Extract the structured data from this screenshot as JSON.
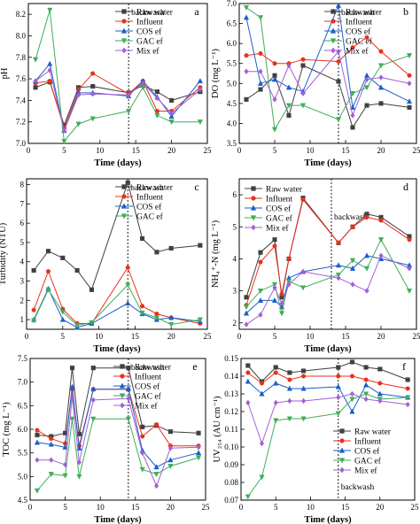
{
  "styles": {
    "Raw water": {
      "color": "#404040",
      "marker": "square"
    },
    "Influent": {
      "color": "#e8311c",
      "marker": "circle"
    },
    "COS ef": {
      "color": "#1a5fc8",
      "marker": "triangle-up"
    },
    "GAC ef": {
      "color": "#3fae5a",
      "marker": "triangle-down"
    },
    "Mix ef": {
      "color": "#a35fd6",
      "marker": "diamond"
    }
  },
  "chart_data": [
    {
      "panel": "a",
      "type": "line",
      "xlabel": "Time (days)",
      "ylabel": "pH",
      "xlim": [
        0,
        25
      ],
      "ylim": [
        7.0,
        8.3
      ],
      "xticks": [
        0,
        5,
        10,
        15,
        20,
        25
      ],
      "yticks": [
        7.0,
        7.2,
        7.4,
        7.6,
        7.8,
        8.0,
        8.2
      ],
      "tickdec": 1,
      "annotation": {
        "text": "backwash",
        "x": 14
      },
      "legend_pos": "top-right",
      "series": [
        {
          "name": "Raw water",
          "x": [
            1,
            3,
            5,
            7,
            9,
            14,
            16,
            18,
            20,
            24
          ],
          "y": [
            7.52,
            7.57,
            7.17,
            7.52,
            7.53,
            7.47,
            7.54,
            7.48,
            7.4,
            7.48
          ]
        },
        {
          "name": "Influent",
          "x": [
            1,
            3,
            5,
            7,
            9,
            14,
            16,
            18,
            20,
            24
          ],
          "y": [
            7.56,
            7.58,
            7.14,
            7.5,
            7.65,
            7.46,
            7.58,
            7.3,
            7.3,
            7.52
          ]
        },
        {
          "name": "COS ef",
          "x": [
            1,
            3,
            5,
            7,
            9,
            14,
            16,
            18,
            20,
            24
          ],
          "y": [
            7.58,
            7.74,
            7.12,
            7.47,
            7.47,
            7.44,
            7.58,
            7.43,
            7.25,
            7.58
          ]
        },
        {
          "name": "GAC ef",
          "x": [
            1,
            3,
            5,
            7,
            9,
            14,
            16,
            18,
            20,
            24
          ],
          "y": [
            7.78,
            8.24,
            7.02,
            7.18,
            7.23,
            7.3,
            7.52,
            7.26,
            7.2,
            7.2
          ]
        },
        {
          "name": "Mix ef",
          "x": [
            1,
            3,
            5,
            7,
            9,
            14,
            16,
            18,
            20,
            24
          ],
          "y": [
            7.58,
            7.68,
            7.12,
            7.45,
            7.46,
            7.45,
            7.56,
            7.42,
            7.28,
            7.5
          ]
        }
      ]
    },
    {
      "panel": "b",
      "type": "line",
      "xlabel": "Time (days)",
      "ylabel": "DO (mg L⁻¹)",
      "xlim": [
        0,
        25
      ],
      "ylim": [
        3.5,
        7.0
      ],
      "xticks": [
        0,
        5,
        10,
        15,
        20,
        25
      ],
      "yticks": [
        3.5,
        4.0,
        4.5,
        5.0,
        5.5,
        6.0,
        6.5,
        7.0
      ],
      "tickdec": 1,
      "annotation": {
        "text": "backwash",
        "x": 14
      },
      "legend_pos": "top-right",
      "series": [
        {
          "name": "Raw water",
          "x": [
            1,
            3,
            5,
            7,
            9,
            14,
            16,
            18,
            20,
            24
          ],
          "y": [
            4.6,
            4.85,
            5.2,
            4.2,
            5.45,
            5.05,
            3.9,
            4.45,
            4.5,
            4.4
          ]
        },
        {
          "name": "Influent",
          "x": [
            1,
            3,
            5,
            7,
            9,
            14,
            16,
            18,
            20,
            24
          ],
          "y": [
            5.7,
            5.75,
            5.5,
            5.5,
            5.6,
            5.55,
            5.9,
            6.15,
            5.8,
            5.2
          ]
        },
        {
          "name": "COS ef",
          "x": [
            1,
            3,
            5,
            7,
            9,
            14,
            16,
            18,
            20,
            24
          ],
          "y": [
            6.65,
            5.0,
            5.1,
            4.9,
            4.8,
            6.95,
            4.4,
            5.2,
            4.9,
            4.55
          ]
        },
        {
          "name": "GAC ef",
          "x": [
            1,
            3,
            5,
            7,
            9,
            14,
            16,
            18,
            20,
            24
          ],
          "y": [
            6.9,
            6.65,
            3.85,
            4.45,
            4.45,
            4.1,
            4.75,
            4.9,
            5.45,
            5.7
          ]
        },
        {
          "name": "Mix ef",
          "x": [
            1,
            3,
            5,
            7,
            9,
            14,
            16,
            18,
            20,
            24
          ],
          "y": [
            5.3,
            5.3,
            4.6,
            5.45,
            4.75,
            5.8,
            4.2,
            5.1,
            5.15,
            5.0
          ]
        }
      ]
    },
    {
      "panel": "c",
      "type": "line",
      "xlabel": "Time (days)",
      "ylabel": "Turbidity (NTU)",
      "xlim": [
        0,
        25
      ],
      "ylim": [
        0.5,
        8.3
      ],
      "xticks": [
        0,
        5,
        10,
        15,
        20,
        25
      ],
      "yticks": [
        1,
        2,
        3,
        4,
        5,
        6,
        7,
        8
      ],
      "tickdec": 0,
      "annotation": {
        "text": "backwash",
        "x": 14
      },
      "legend_pos": "top-right",
      "series": [
        {
          "name": "Raw water",
          "x": [
            1,
            3,
            5,
            7,
            9,
            14,
            16,
            18,
            20,
            24
          ],
          "y": [
            3.55,
            4.55,
            4.2,
            3.55,
            2.55,
            8.1,
            5.2,
            4.5,
            4.7,
            4.85
          ]
        },
        {
          "name": "Influent",
          "x": [
            1,
            3,
            5,
            7,
            9,
            14,
            16,
            18,
            20,
            24
          ],
          "y": [
            1.5,
            3.5,
            1.55,
            0.8,
            0.8,
            3.7,
            1.7,
            1.3,
            1.1,
            0.8
          ]
        },
        {
          "name": "COS ef",
          "x": [
            1,
            3,
            5,
            7,
            9,
            14,
            16,
            18,
            20,
            24
          ],
          "y": [
            1.0,
            2.6,
            1.0,
            0.6,
            0.8,
            1.85,
            1.3,
            1.0,
            1.1,
            0.9
          ]
        },
        {
          "name": "GAC ef",
          "x": [
            1,
            3,
            5,
            7,
            9,
            14,
            16,
            18,
            20,
            24
          ],
          "y": [
            0.95,
            2.55,
            1.4,
            0.7,
            0.85,
            2.8,
            1.35,
            1.1,
            0.75,
            1.0
          ]
        }
      ]
    },
    {
      "panel": "d",
      "type": "line",
      "xlabel": "Time (days)",
      "ylabel": "NH₄⁺-N (mg L⁻¹)",
      "xlim": [
        0,
        25
      ],
      "ylim": [
        1.8,
        6.5
      ],
      "xticks": [
        0,
        5,
        10,
        15,
        20,
        25
      ],
      "yticks": [
        2,
        3,
        4,
        5,
        6
      ],
      "tickdec": 0,
      "annotation": {
        "text": "backwash",
        "x": 13
      },
      "legend_pos": "top-left",
      "series": [
        {
          "name": "Raw water",
          "x": [
            1,
            3,
            5,
            6,
            7,
            9,
            14,
            16,
            18,
            20,
            24
          ],
          "y": [
            2.8,
            4.2,
            4.6,
            2.8,
            4.0,
            5.9,
            4.5,
            5.0,
            5.4,
            5.3,
            4.7
          ]
        },
        {
          "name": "Influent",
          "x": [
            1,
            3,
            5,
            6,
            7,
            9,
            14,
            16,
            18,
            20,
            24
          ],
          "y": [
            2.55,
            3.9,
            4.4,
            2.9,
            4.0,
            5.85,
            4.5,
            5.0,
            5.3,
            5.2,
            4.6
          ]
        },
        {
          "name": "COS ef",
          "x": [
            1,
            3,
            5,
            6,
            7,
            9,
            14,
            16,
            18,
            20,
            24
          ],
          "y": [
            2.3,
            2.7,
            2.7,
            2.5,
            3.4,
            3.6,
            3.8,
            3.7,
            4.1,
            4.0,
            3.8
          ]
        },
        {
          "name": "GAC ef",
          "x": [
            1,
            3,
            5,
            6,
            7,
            9,
            14,
            16,
            18,
            20,
            24
          ],
          "y": [
            2.5,
            3.0,
            3.2,
            2.3,
            3.3,
            3.1,
            3.5,
            3.95,
            3.7,
            4.6,
            3.0
          ]
        },
        {
          "name": "Mix ef",
          "x": [
            1,
            3,
            5,
            6,
            7,
            9,
            14,
            16,
            18,
            20,
            24
          ],
          "y": [
            1.95,
            2.25,
            3.1,
            2.6,
            3.2,
            3.6,
            3.4,
            3.2,
            3.0,
            4.1,
            3.7
          ]
        }
      ]
    },
    {
      "panel": "e",
      "type": "line",
      "xlabel": "Time (days)",
      "ylabel": "TOC (mg L⁻¹)",
      "xlim": [
        0,
        25
      ],
      "ylim": [
        4.5,
        7.5
      ],
      "xticks": [
        0,
        5,
        10,
        15,
        20,
        25
      ],
      "yticks": [
        4.5,
        5.0,
        5.5,
        6.0,
        6.5,
        7.0,
        7.5
      ],
      "tickdec": 1,
      "annotation": {
        "text": "backwash",
        "x": 14
      },
      "legend_pos": "top-right",
      "series": [
        {
          "name": "Raw water",
          "x": [
            1,
            3,
            5,
            6,
            7,
            9,
            14,
            16,
            18,
            20,
            24
          ],
          "y": [
            5.88,
            5.85,
            5.92,
            7.3,
            5.9,
            7.3,
            7.3,
            6.05,
            6.08,
            5.95,
            5.92
          ]
        },
        {
          "name": "Influent",
          "x": [
            1,
            3,
            5,
            6,
            7,
            9,
            14,
            16,
            18,
            20,
            24
          ],
          "y": [
            5.98,
            5.8,
            5.7,
            6.85,
            5.65,
            6.85,
            6.85,
            5.85,
            6.1,
            5.65,
            5.65
          ]
        },
        {
          "name": "COS ef",
          "x": [
            1,
            3,
            5,
            6,
            7,
            9,
            14,
            16,
            18,
            20,
            24
          ],
          "y": [
            5.72,
            5.68,
            5.62,
            6.9,
            5.6,
            6.85,
            6.85,
            5.55,
            5.2,
            5.35,
            5.5
          ]
        },
        {
          "name": "GAC ef",
          "x": [
            1,
            3,
            5,
            6,
            7,
            9,
            14,
            16,
            18,
            20,
            24
          ],
          "y": [
            4.7,
            5.05,
            5.02,
            6.22,
            5.0,
            6.22,
            6.22,
            5.15,
            5.05,
            5.22,
            5.4
          ]
        },
        {
          "name": "Mix ef",
          "x": [
            1,
            3,
            5,
            6,
            7,
            9,
            14,
            16,
            18,
            20,
            24
          ],
          "y": [
            5.35,
            5.35,
            5.25,
            6.68,
            5.3,
            6.62,
            6.65,
            5.5,
            4.8,
            5.6,
            5.62
          ]
        }
      ]
    },
    {
      "panel": "f",
      "type": "line",
      "xlabel": "Time (days)",
      "ylabel": "UV₂₅₄ (AU cm⁻¹)",
      "xlim": [
        0,
        25
      ],
      "ylim": [
        0.07,
        0.15
      ],
      "xticks": [
        0,
        5,
        10,
        15,
        20,
        25
      ],
      "yticks": [
        0.07,
        0.08,
        0.09,
        0.1,
        0.11,
        0.12,
        0.13,
        0.14,
        0.15
      ],
      "tickdec": 2,
      "annotation": {
        "text": "backwash",
        "x": 14
      },
      "legend_pos": "bottom-right",
      "series": [
        {
          "name": "Raw water",
          "x": [
            1,
            3,
            5,
            7,
            9,
            14,
            16,
            18,
            20,
            24
          ],
          "y": [
            0.146,
            0.137,
            0.145,
            0.142,
            0.143,
            0.145,
            0.148,
            0.145,
            0.144,
            0.138
          ]
        },
        {
          "name": "Influent",
          "x": [
            1,
            3,
            5,
            7,
            9,
            14,
            16,
            18,
            20,
            24
          ],
          "y": [
            0.142,
            0.136,
            0.142,
            0.138,
            0.14,
            0.14,
            0.14,
            0.138,
            0.136,
            0.133
          ]
        },
        {
          "name": "COS ef",
          "x": [
            1,
            3,
            5,
            7,
            9,
            14,
            16,
            18,
            20,
            24
          ],
          "y": [
            0.137,
            0.13,
            0.136,
            0.133,
            0.133,
            0.134,
            0.12,
            0.135,
            0.13,
            0.128
          ]
        },
        {
          "name": "GAC ef",
          "x": [
            1,
            3,
            5,
            7,
            9,
            14,
            16,
            18,
            20,
            24
          ],
          "y": [
            0.072,
            0.083,
            0.115,
            0.116,
            0.116,
            0.119,
            0.127,
            0.13,
            0.127,
            0.128
          ]
        },
        {
          "name": "Mix ef",
          "x": [
            1,
            3,
            5,
            7,
            9,
            14,
            16,
            18,
            20,
            24
          ],
          "y": [
            0.125,
            0.102,
            0.125,
            0.126,
            0.126,
            0.128,
            0.13,
            0.127,
            0.126,
            0.124
          ]
        }
      ]
    }
  ]
}
